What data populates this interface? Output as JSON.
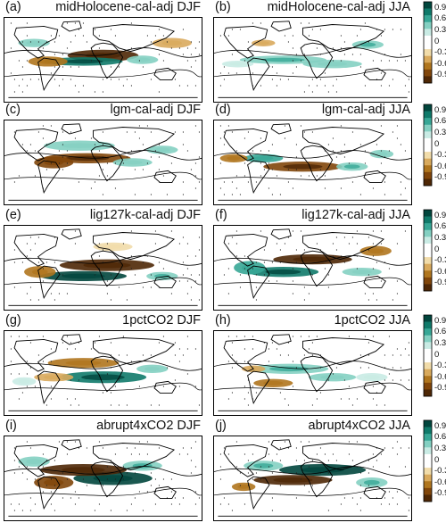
{
  "panels": [
    {
      "letter": "(a)",
      "name": "midHolocene-cal-adj DJF"
    },
    {
      "letter": "(b)",
      "name": "midHolocene-cal-adj JJA"
    },
    {
      "letter": "(c)",
      "name": "lgm-cal-adj DJF"
    },
    {
      "letter": "(d)",
      "name": "lgm-cal-adj JJA"
    },
    {
      "letter": "(e)",
      "name": "lig127k-cal-adj DJF"
    },
    {
      "letter": "(f)",
      "name": "lig127k-cal-adj JJA"
    },
    {
      "letter": "(g)",
      "name": "1pctCO2 DJF"
    },
    {
      "letter": "(h)",
      "name": "1pctCO2 JJA"
    },
    {
      "letter": "(i)",
      "name": "abrupt4xCO2 DJF"
    },
    {
      "letter": "(j)",
      "name": "abrupt4xCO2 JJA"
    }
  ],
  "colorbar": {
    "ticks": [
      "0.9",
      "0.6",
      "0.3",
      "0",
      "-0.3",
      "-0.6",
      "-0.9"
    ],
    "colors": [
      "#01463d",
      "#0f7a6a",
      "#37a796",
      "#84d0c2",
      "#c9ebe4",
      "#ffffff",
      "#ffffff",
      "#f1dcaa",
      "#d9aa5d",
      "#b0761e",
      "#81460a",
      "#4e2705"
    ]
  }
}
